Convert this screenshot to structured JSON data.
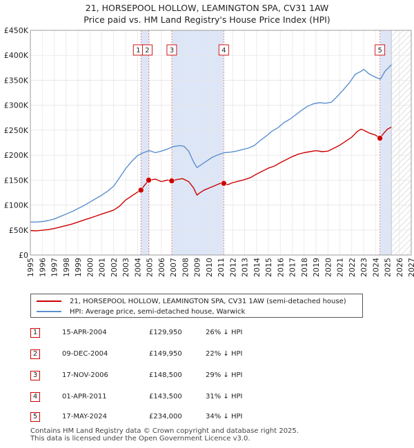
{
  "chart_data": {
    "type": "line",
    "title": "21, HORSEPOOL HOLLOW, LEAMINGTON SPA, CV31 1AW",
    "subtitle": "Price paid vs. HM Land Registry's House Price Index (HPI)",
    "xlim": [
      1995,
      2027
    ],
    "ylim": [
      0,
      450000
    ],
    "y_ticks": [
      0,
      50000,
      100000,
      150000,
      200000,
      250000,
      300000,
      350000,
      400000,
      450000
    ],
    "y_tick_labels": [
      "£0",
      "£50K",
      "£100K",
      "£150K",
      "£200K",
      "£250K",
      "£300K",
      "£350K",
      "£400K",
      "£450K"
    ],
    "x_ticks": [
      1995,
      1996,
      1997,
      1998,
      1999,
      2000,
      2001,
      2002,
      2003,
      2004,
      2005,
      2006,
      2007,
      2008,
      2009,
      2010,
      2011,
      2012,
      2013,
      2014,
      2015,
      2016,
      2017,
      2018,
      2019,
      2020,
      2021,
      2022,
      2023,
      2024,
      2025,
      2026,
      2027
    ],
    "x_tick_labels": [
      "1995",
      "1996",
      "1997",
      "1998",
      "1999",
      "2000",
      "2001",
      "2002",
      "2003",
      "2004",
      "2005",
      "2006",
      "2007",
      "2008",
      "2009",
      "2010",
      "2011",
      "2012",
      "2013",
      "2014",
      "2015",
      "2016",
      "2017",
      "2018",
      "2019",
      "2020",
      "2021",
      "2022",
      "2023",
      "2024",
      "2025",
      "2026",
      "2027"
    ],
    "data_end_year": 2025.33,
    "shaded_ranges": [
      [
        2004.29,
        2004.94
      ],
      [
        2006.88,
        2011.25
      ],
      [
        2024.37,
        2025.33
      ]
    ],
    "series": [
      {
        "name": "21, HORSEPOOL HOLLOW, LEAMINGTON SPA, CV31 1AW (semi-detached house)",
        "color": "#cc0000",
        "x": [
          1995.0,
          1995.5,
          1996.0,
          1996.5,
          1997.0,
          1997.5,
          1998.0,
          1998.5,
          1999.0,
          1999.5,
          2000.0,
          2000.5,
          2001.0,
          2001.5,
          2002.0,
          2002.5,
          2003.0,
          2003.5,
          2004.0,
          2004.29,
          2004.5,
          2004.94,
          2005.5,
          2006.0,
          2006.5,
          2006.88,
          2007.3,
          2007.8,
          2008.3,
          2008.7,
          2009.0,
          2009.2,
          2009.6,
          2010.2,
          2010.7,
          2011.0,
          2011.25,
          2011.6,
          2012.0,
          2012.5,
          2013.0,
          2013.5,
          2014.0,
          2014.5,
          2015.0,
          2015.5,
          2016.0,
          2016.5,
          2017.0,
          2017.5,
          2018.0,
          2018.5,
          2019.0,
          2019.5,
          2020.0,
          2020.5,
          2021.0,
          2021.5,
          2022.0,
          2022.5,
          2022.8,
          2023.0,
          2023.5,
          2024.0,
          2024.37,
          2024.7,
          2025.0,
          2025.33
        ],
        "values": [
          49000,
          48500,
          49500,
          51000,
          53000,
          56000,
          59000,
          62000,
          66000,
          70000,
          74000,
          78000,
          82000,
          86000,
          90000,
          98000,
          110000,
          118000,
          126000,
          129950,
          137000,
          149950,
          152000,
          147000,
          150000,
          148500,
          151000,
          153000,
          147000,
          135000,
          120000,
          124000,
          130000,
          136000,
          141000,
          144000,
          143500,
          141000,
          145000,
          148000,
          151000,
          155000,
          162000,
          168000,
          174000,
          178000,
          185000,
          191000,
          197000,
          202000,
          205000,
          207000,
          209000,
          207000,
          208000,
          214000,
          220000,
          228000,
          236000,
          248000,
          252000,
          250000,
          244000,
          240000,
          234000,
          244000,
          252000,
          256000
        ]
      },
      {
        "name": "HPI: Average price, semi-detached house, Warwick",
        "color": "#5b8fcf",
        "x": [
          1995.0,
          1995.5,
          1996.0,
          1996.5,
          1997.0,
          1997.5,
          1998.0,
          1998.5,
          1999.0,
          1999.5,
          2000.0,
          2000.5,
          2001.0,
          2001.5,
          2002.0,
          2002.5,
          2003.0,
          2003.5,
          2004.0,
          2004.5,
          2005.0,
          2005.5,
          2006.0,
          2006.5,
          2007.0,
          2007.5,
          2007.9,
          2008.3,
          2008.7,
          2009.0,
          2009.3,
          2009.8,
          2010.3,
          2010.8,
          2011.3,
          2011.8,
          2012.3,
          2012.8,
          2013.3,
          2013.8,
          2014.3,
          2014.8,
          2015.3,
          2015.8,
          2016.3,
          2016.8,
          2017.3,
          2017.8,
          2018.3,
          2018.8,
          2019.3,
          2019.8,
          2020.3,
          2020.8,
          2021.3,
          2021.8,
          2022.3,
          2022.8,
          2023.0,
          2023.5,
          2024.0,
          2024.4,
          2024.8,
          2025.33
        ],
        "values": [
          66000,
          66000,
          67000,
          69000,
          72000,
          77000,
          82000,
          87000,
          93000,
          99000,
          106000,
          113000,
          120000,
          128000,
          138000,
          155000,
          173000,
          187000,
          199000,
          205000,
          209000,
          205000,
          208000,
          212000,
          217000,
          219000,
          218000,
          208000,
          187000,
          175000,
          180000,
          188000,
          196000,
          201000,
          205000,
          206000,
          208000,
          211000,
          214000,
          219000,
          229000,
          238000,
          248000,
          255000,
          265000,
          272000,
          281000,
          290000,
          298000,
          303000,
          305000,
          304000,
          306000,
          318000,
          331000,
          345000,
          362000,
          368000,
          372000,
          362000,
          356000,
          352000,
          368000,
          381000
        ]
      }
    ],
    "sales": [
      {
        "label": "1",
        "x": 2004.29,
        "value": 129950
      },
      {
        "label": "2",
        "x": 2004.94,
        "value": 149950
      },
      {
        "label": "3",
        "x": 2006.88,
        "value": 148500
      },
      {
        "label": "4",
        "x": 2011.25,
        "value": 143500
      },
      {
        "label": "5",
        "x": 2024.37,
        "value": 234000
      }
    ]
  },
  "legend": {
    "property_label": "21, HORSEPOOL HOLLOW, LEAMINGTON SPA, CV31 1AW (semi-detached house)",
    "hpi_label": "HPI: Average price, semi-detached house, Warwick"
  },
  "transactions": [
    {
      "num": "1",
      "date": "15-APR-2004",
      "price": "£129,950",
      "hpi": "26% ↓ HPI"
    },
    {
      "num": "2",
      "date": "09-DEC-2004",
      "price": "£149,950",
      "hpi": "22% ↓ HPI"
    },
    {
      "num": "3",
      "date": "17-NOV-2006",
      "price": "£148,500",
      "hpi": "29% ↓ HPI"
    },
    {
      "num": "4",
      "date": "01-APR-2011",
      "price": "£143,500",
      "hpi": "31% ↓ HPI"
    },
    {
      "num": "5",
      "date": "17-MAY-2024",
      "price": "£234,000",
      "hpi": "34% ↓ HPI"
    }
  ],
  "footer": {
    "line1": "Contains HM Land Registry data © Crown copyright and database right 2025.",
    "line2": "This data is licensed under the Open Government Licence v3.0."
  },
  "colors": {
    "property": "#cc0000",
    "hpi": "#5b8fcf",
    "shade": "#dde6f7",
    "grid": "#e6e6e6"
  }
}
